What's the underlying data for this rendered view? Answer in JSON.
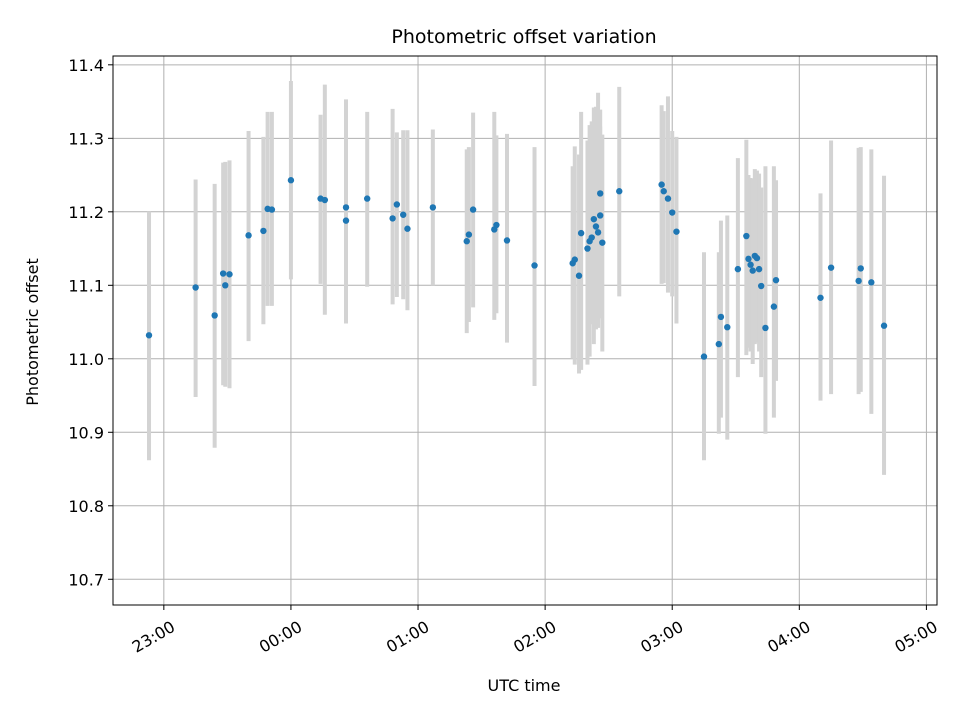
{
  "chart_data": {
    "type": "scatter",
    "title": "Photometric offset variation",
    "xlabel": "UTC time",
    "ylabel": "Photometric offset",
    "x_ticks": [
      "23:00",
      "00:00",
      "01:00",
      "02:00",
      "03:00",
      "04:00",
      "05:00"
    ],
    "y_ticks": [
      "10.7",
      "10.8",
      "10.9",
      "11.0",
      "11.1",
      "11.2",
      "11.3",
      "11.4"
    ],
    "ylim": [
      10.665,
      11.412
    ],
    "xlim": [
      "22:36",
      "05:05"
    ],
    "grid": true,
    "colors": {
      "points": "#1f77b4",
      "errorbars": "#d3d3d3",
      "grid": "#b0b0b0"
    },
    "series": [
      {
        "x": [
          "22:53",
          "23:15",
          "23:24",
          "23:28",
          "23:29",
          "23:31",
          "23:40",
          "23:47",
          "23:49",
          "23:51",
          "24:00",
          "24:14",
          "24:16",
          "24:26",
          "24:26",
          "24:36",
          "24:48",
          "24:50",
          "24:53",
          "24:55",
          "25:07",
          "25:23",
          "25:24",
          "25:26",
          "25:36",
          "25:37",
          "25:42",
          "25:55",
          "26:13",
          "26:14",
          "26:16",
          "26:17",
          "26:20",
          "26:21",
          "26:22",
          "26:23",
          "26:24",
          "26:25",
          "26:26",
          "26:26",
          "26:27",
          "26:35",
          "26:55",
          "26:56",
          "26:58",
          "27:00",
          "27:02",
          "27:15",
          "27:22",
          "27:23",
          "27:26",
          "27:31",
          "27:35",
          "27:36",
          "27:37",
          "27:38",
          "27:39",
          "27:40",
          "27:41",
          "27:42",
          "27:44",
          "27:48",
          "27:49",
          "28:10",
          "28:15",
          "28:28",
          "28:29",
          "28:34",
          "28:40"
        ],
        "y": [
          11.032,
          11.097,
          11.059,
          11.116,
          11.1,
          11.115,
          11.168,
          11.174,
          11.204,
          11.203,
          11.243,
          11.218,
          11.216,
          11.206,
          11.188,
          11.218,
          11.191,
          11.21,
          11.196,
          11.177,
          11.206,
          11.16,
          11.169,
          11.203,
          11.176,
          11.182,
          11.161,
          11.127,
          11.13,
          11.135,
          11.113,
          11.171,
          11.15,
          11.16,
          11.165,
          11.19,
          11.18,
          11.172,
          11.225,
          11.195,
          11.158,
          11.228,
          11.237,
          11.228,
          11.218,
          11.199,
          11.173,
          11.003,
          11.02,
          11.057,
          11.043,
          11.122,
          11.167,
          11.136,
          11.128,
          11.12,
          11.14,
          11.137,
          11.122,
          11.099,
          11.042,
          11.071,
          11.107,
          11.083,
          11.124,
          11.106,
          11.123,
          11.104,
          11.045
        ],
        "yerr_low": [
          10.862,
          10.948,
          10.879,
          10.964,
          10.962,
          10.96,
          11.024,
          11.047,
          11.072,
          11.072,
          11.108,
          11.102,
          11.06,
          11.053,
          11.048,
          11.098,
          11.074,
          11.084,
          11.081,
          11.066,
          11.1,
          11.035,
          11.05,
          11.07,
          11.053,
          11.062,
          11.022,
          10.963,
          11.0,
          10.992,
          10.98,
          10.985,
          10.992,
          11.003,
          11.047,
          11.02,
          11.04,
          11.042,
          11.058,
          11.055,
          11.01,
          11.085,
          11.102,
          11.103,
          11.09,
          11.085,
          11.048,
          10.862,
          10.898,
          10.92,
          10.89,
          10.975,
          11.005,
          11.015,
          11.01,
          10.993,
          11.02,
          11.022,
          11.01,
          10.975,
          10.898,
          10.92,
          10.97,
          10.943,
          10.952,
          10.952,
          10.955,
          10.925,
          10.842
        ],
        "yerr_high": [
          11.2,
          11.244,
          11.238,
          11.267,
          11.268,
          11.27,
          11.31,
          11.302,
          11.336,
          11.336,
          11.378,
          11.332,
          11.373,
          11.353,
          11.326,
          11.336,
          11.34,
          11.308,
          11.311,
          11.311,
          11.312,
          11.285,
          11.288,
          11.335,
          11.336,
          11.304,
          11.306,
          11.288,
          11.262,
          11.289,
          11.278,
          11.336,
          11.297,
          11.318,
          11.323,
          11.342,
          11.343,
          11.362,
          11.316,
          11.339,
          11.305,
          11.37,
          11.345,
          11.337,
          11.357,
          11.31,
          11.302,
          11.145,
          11.145,
          11.188,
          11.195,
          11.273,
          11.298,
          11.25,
          11.246,
          11.245,
          11.258,
          11.256,
          11.252,
          11.233,
          11.262,
          11.262,
          11.243,
          11.225,
          11.297,
          11.287,
          11.288,
          11.285,
          11.249
        ]
      }
    ]
  }
}
